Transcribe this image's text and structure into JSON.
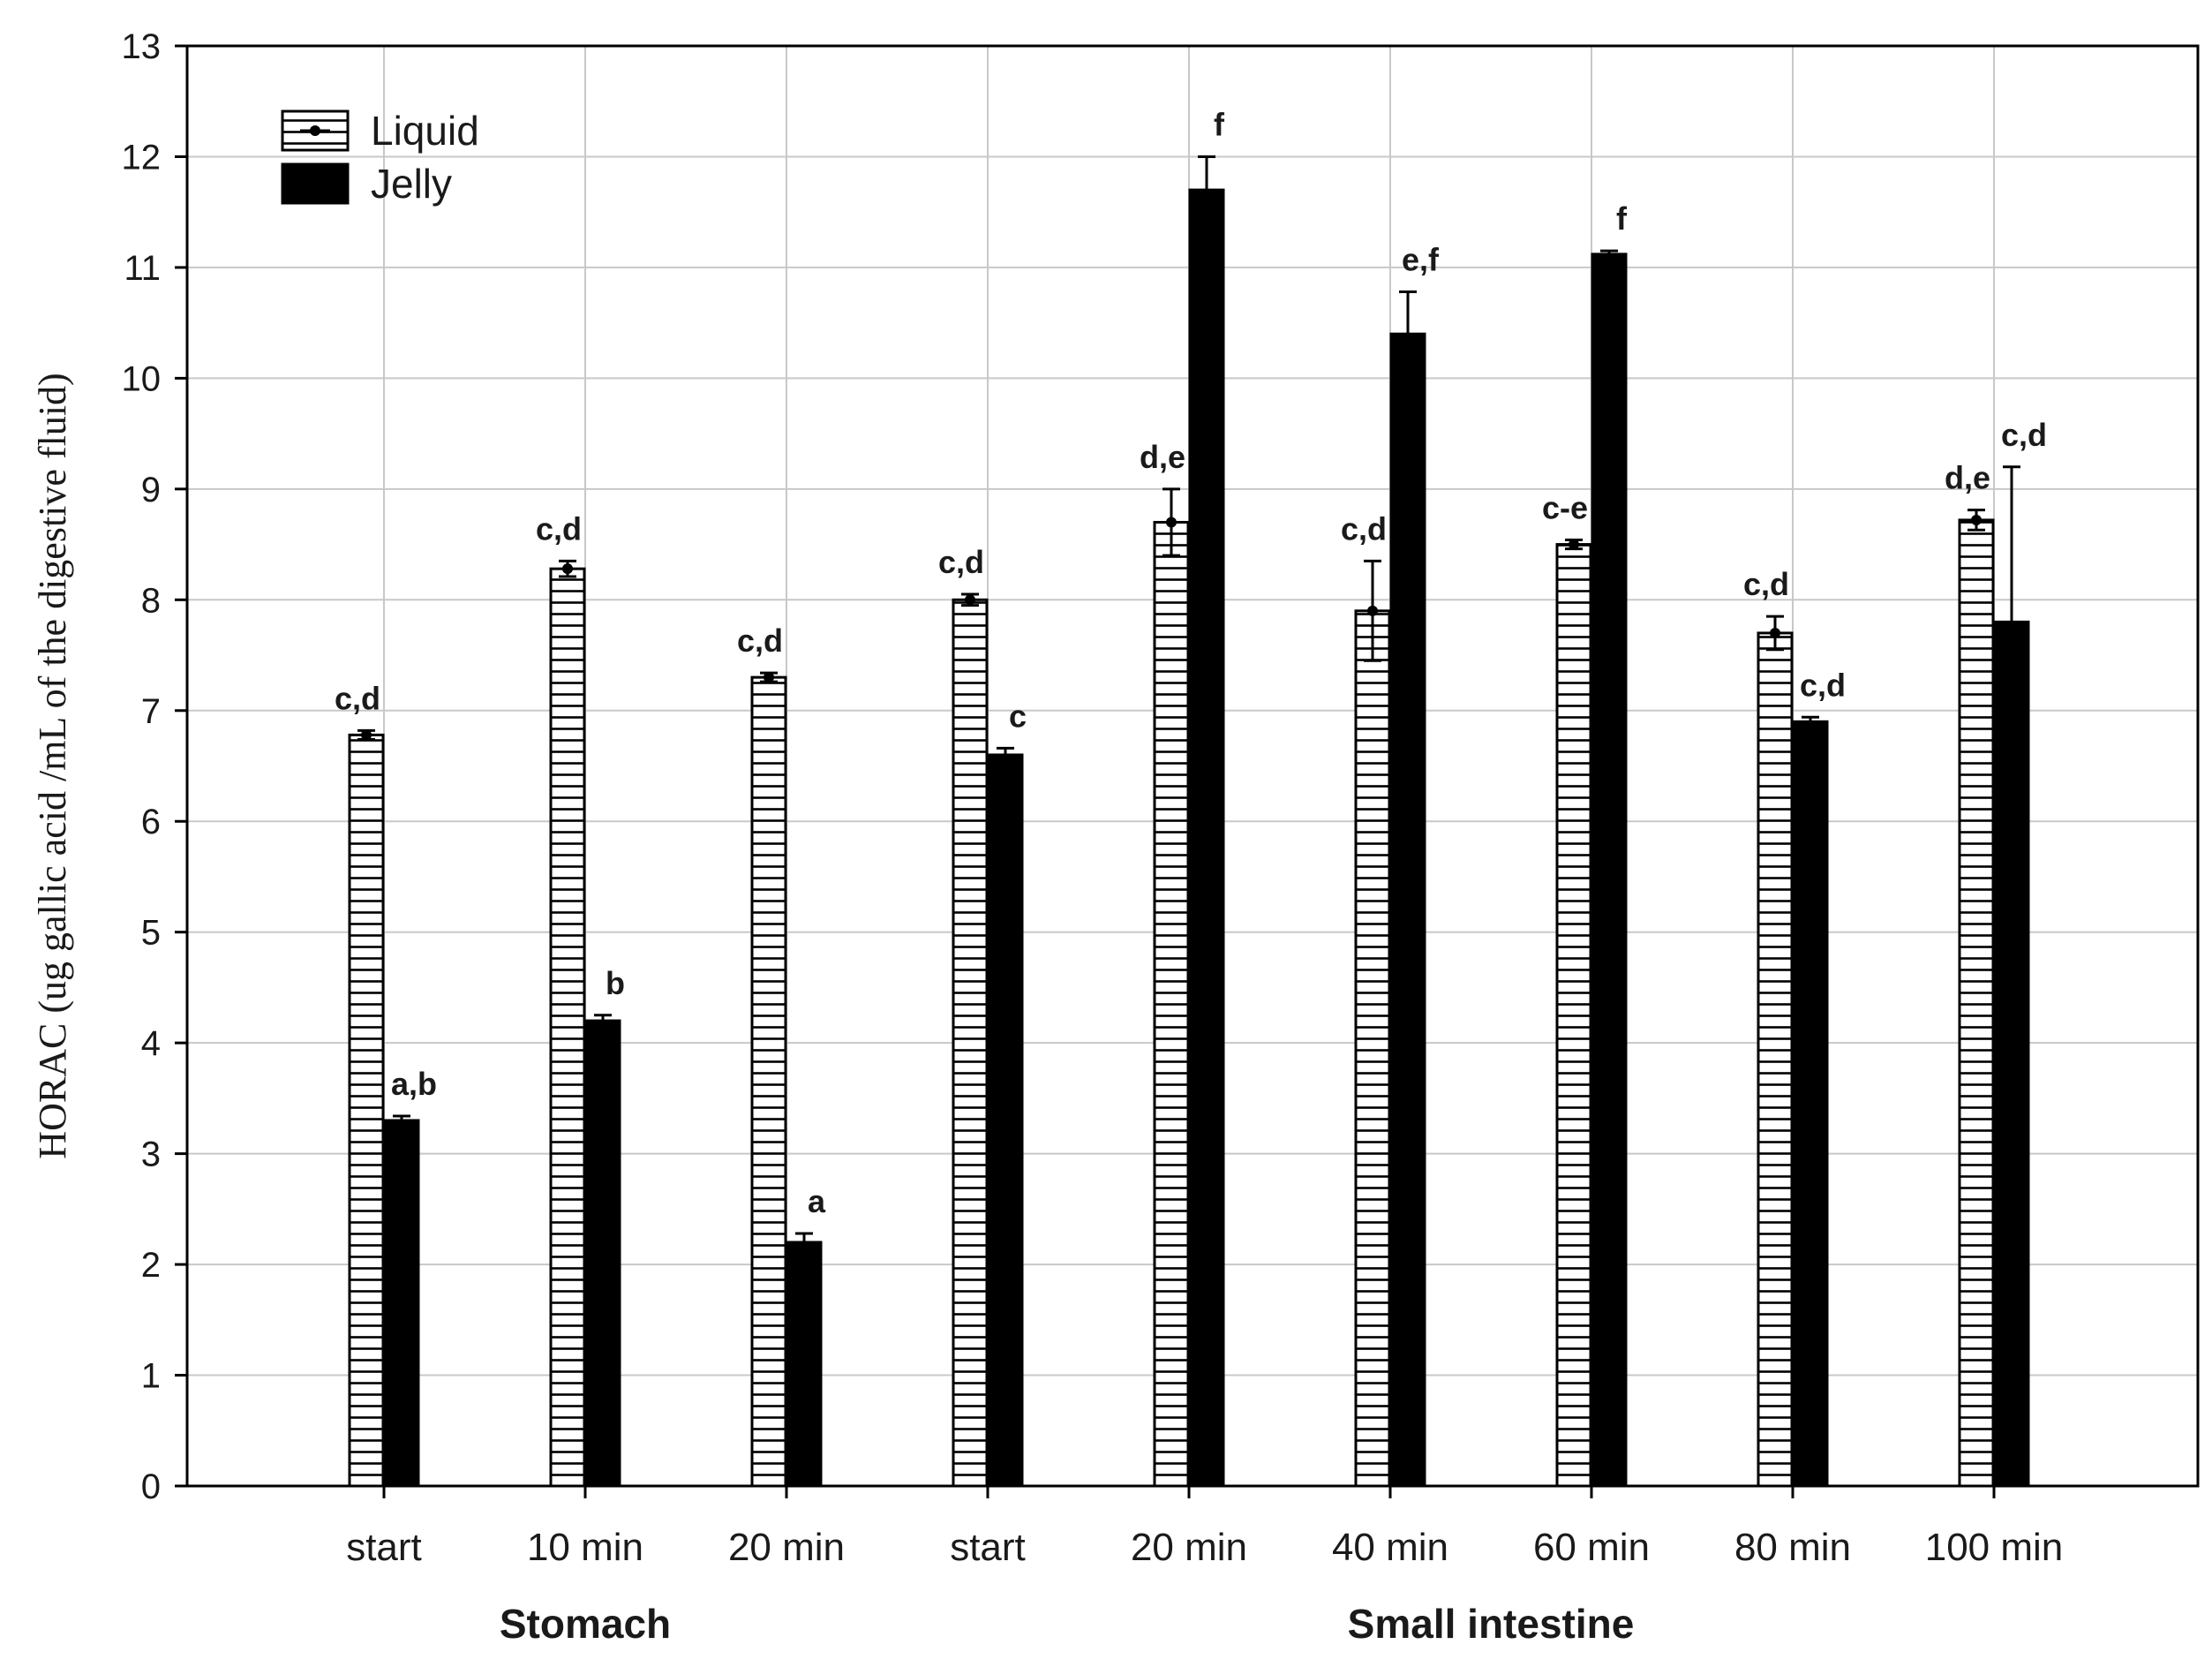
{
  "chart_data": {
    "type": "bar",
    "ylabel": "HORAC (ug gallic acid /mL of the digestive fluid)",
    "ylim": [
      0,
      13
    ],
    "yticks": [
      0,
      1,
      2,
      3,
      4,
      5,
      6,
      7,
      8,
      9,
      10,
      11,
      12,
      13
    ],
    "grid": true,
    "legend_position": "top-left",
    "categories": [
      "start",
      "10 min",
      "20 min",
      "start",
      "20 min",
      "40 min",
      "60 min",
      "80 min",
      "100 min"
    ],
    "groups": [
      {
        "label": "Stomach",
        "categories": [
          0,
          1,
          2
        ]
      },
      {
        "label": "Small intestine",
        "categories": [
          3,
          4,
          5,
          6,
          7,
          8
        ]
      }
    ],
    "series": [
      {
        "name": "Liquid",
        "pattern": "horizontal-hatch",
        "color": "#ffffff",
        "values": [
          6.78,
          8.28,
          7.3,
          8.0,
          8.7,
          7.9,
          8.5,
          7.7,
          8.72
        ],
        "errors": [
          0.04,
          0.07,
          0.04,
          0.05,
          0.3,
          0.45,
          0.04,
          0.15,
          0.09
        ],
        "labels": [
          "c,d",
          "c,d",
          "c,d",
          "c,d",
          "d,e",
          "c,d",
          "c-e",
          "c,d",
          "d,e"
        ]
      },
      {
        "name": "Jelly",
        "pattern": "solid",
        "color": "#000000",
        "values": [
          3.3,
          4.2,
          2.2,
          6.6,
          11.7,
          10.4,
          11.12,
          6.9,
          7.8
        ],
        "errors": [
          0.04,
          0.05,
          0.08,
          0.06,
          0.3,
          0.38,
          0.03,
          0.04,
          1.4
        ],
        "labels": [
          "a,b",
          "b",
          "a",
          "c",
          "f",
          "e,f",
          "f",
          "c,d",
          "c,d"
        ]
      }
    ]
  }
}
